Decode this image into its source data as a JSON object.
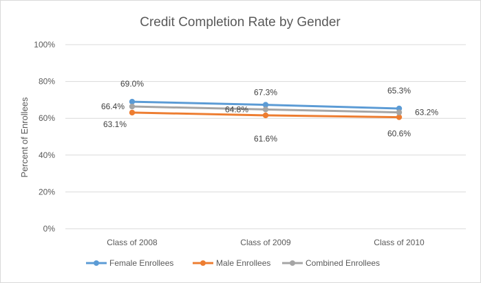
{
  "chart_data": {
    "type": "line",
    "title": "Credit Completion Rate by Gender",
    "xlabel": "",
    "ylabel": "Percent of Enrollees",
    "categories": [
      "Class of 2008",
      "Class of 2009",
      "Class of 2010"
    ],
    "ylim": [
      0,
      100
    ],
    "yticks": [
      "0%",
      "20%",
      "40%",
      "60%",
      "80%",
      "100%"
    ],
    "grid": true,
    "legend": "bottom",
    "series": [
      {
        "name": "Female Enrollees",
        "values": [
          69.0,
          67.3,
          65.3
        ],
        "labels": [
          "69.0%",
          "67.3%",
          "65.3%"
        ],
        "color": "#5b9bd5"
      },
      {
        "name": "Male Enrollees",
        "values": [
          63.1,
          61.6,
          60.6
        ],
        "labels": [
          "63.1%",
          "61.6%",
          "60.6%"
        ],
        "color": "#ed7d31"
      },
      {
        "name": "Combined Enrollees",
        "values": [
          66.4,
          64.8,
          63.2
        ],
        "labels": [
          "66.4%",
          "64.8%",
          "63.2%"
        ],
        "color": "#a5a5a5"
      }
    ]
  }
}
